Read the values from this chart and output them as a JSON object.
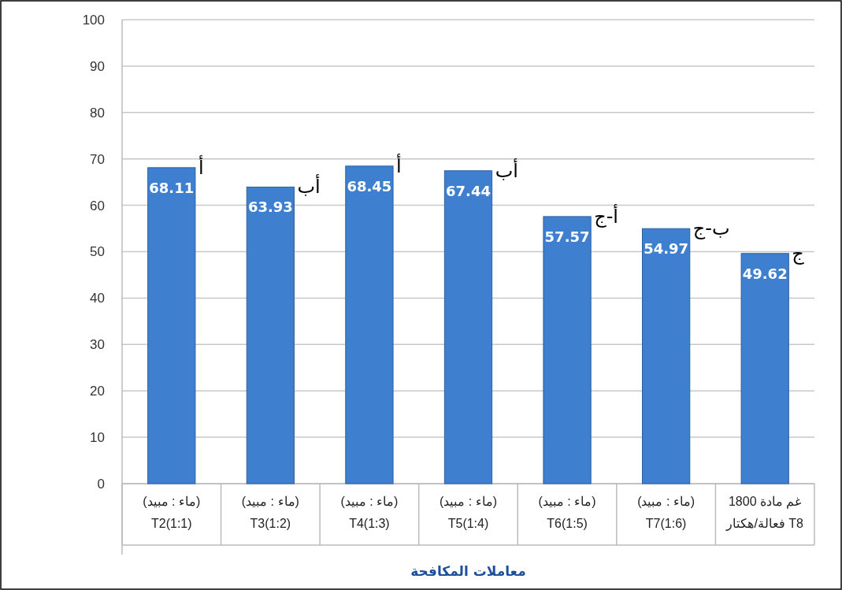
{
  "chart_data": {
    "type": "bar",
    "xlabel": "معاملات المكافحة",
    "categories": [
      "(ماء : مبيد)\nT2(1:1)",
      "(ماء : مبيد)\nT3(1:2)",
      "(ماء : مبيد)\nT4(1:3)",
      "(ماء : مبيد)\nT5(1:4)",
      "(ماء : مبيد)\nT6(1:5)",
      "(ماء : مبيد)\nT7(1:6)",
      "1800 غم مادة\nفعالة/هكتار  T8"
    ],
    "values": [
      68.11,
      63.93,
      68.45,
      67.44,
      57.57,
      54.97,
      49.62
    ],
    "color": "#3f7fcf",
    "data_labels": true,
    "ylim": [
      0,
      100
    ],
    "yticks": [
      0,
      10,
      20,
      30,
      40,
      50,
      60,
      70,
      80,
      90,
      100
    ],
    "grid": "y",
    "annotations": [
      {
        "text": "أ",
        "x": "(ماء : مبيد)\nT2(1:1)",
        "y": 68.11
      },
      {
        "text": "أب",
        "x": "(ماء : مبيد)\nT3(1:2)",
        "y": 63.93
      },
      {
        "text": "أ",
        "x": "(ماء : مبيد)\nT4(1:3)",
        "y": 68.45
      },
      {
        "text": "أب",
        "x": "(ماء : مبيد)\nT5(1:4)",
        "y": 67.44
      },
      {
        "text": "أ-ج",
        "x": "(ماء : مبيد)\nT6(1:5)",
        "y": 57.57
      },
      {
        "text": "ب-ج",
        "x": "(ماء : مبيد)\nT7(1:6)",
        "y": 54.97
      },
      {
        "text": "ج",
        "x": "1800 غم مادة\nفعالة/هكتار  T8",
        "y": 49.62
      }
    ]
  }
}
